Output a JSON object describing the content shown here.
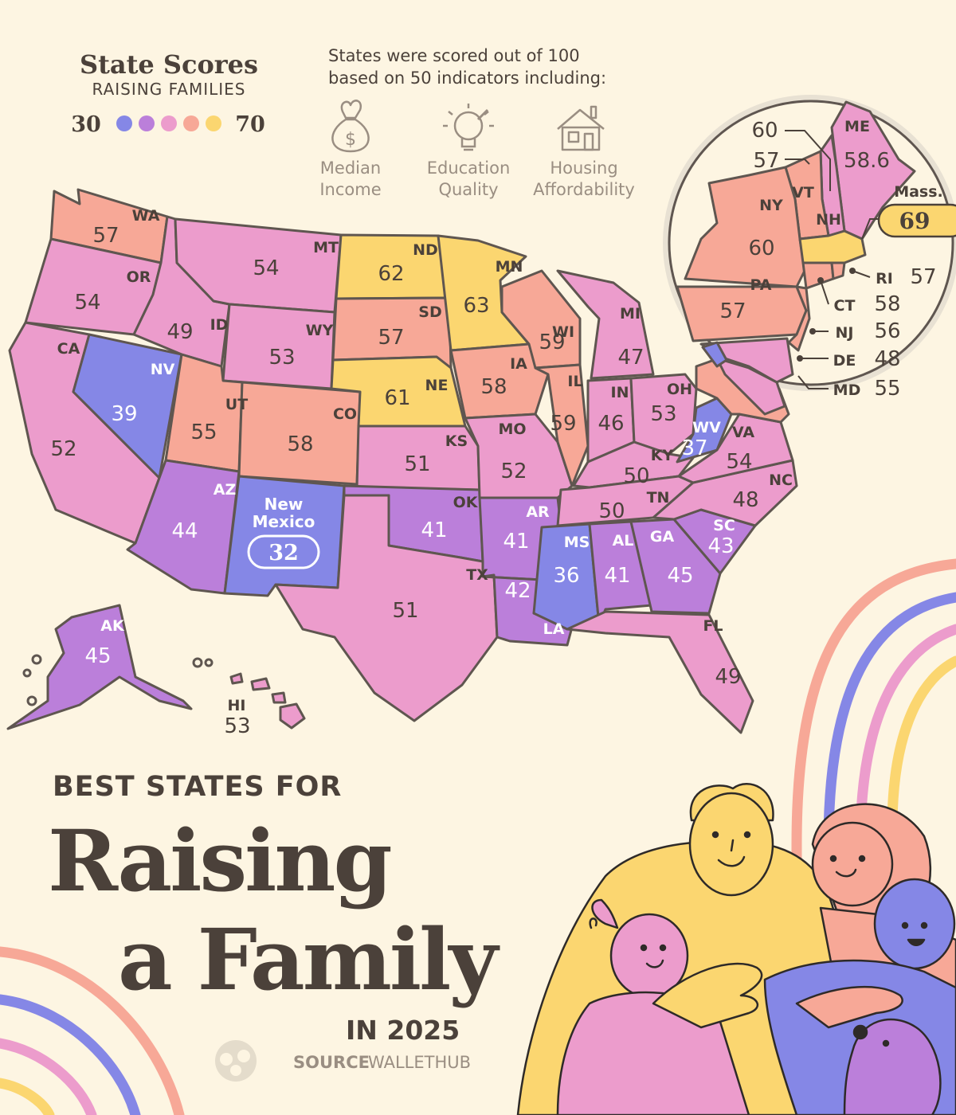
{
  "legend": {
    "title": "State Scores",
    "subtitle": "RAISING FAMILIES",
    "min_label": "30",
    "max_label": "70",
    "scale_colors": [
      "#8587e6",
      "#bb7fda",
      "#ec9ccc",
      "#f7a897",
      "#fbd670"
    ]
  },
  "methodology": {
    "line1": "States were scored out of 100",
    "line2": "based on 50 indicators including:",
    "indicators": [
      {
        "icon": "money-bag-icon",
        "line1": "Median",
        "line2": "Income"
      },
      {
        "icon": "lightbulb-icon",
        "line1": "Education",
        "line2": "Quality"
      },
      {
        "icon": "house-icon",
        "line1": "Housing",
        "line2": "Affordability"
      }
    ]
  },
  "callouts": {
    "new_mexico": {
      "name_line1": "New",
      "name_line2": "Mexico",
      "score": "32"
    },
    "massachusetts": {
      "name": "Mass.",
      "score": "69"
    }
  },
  "inset": {
    "outside_labels": [
      {
        "code": "",
        "score": "60"
      },
      {
        "code": "",
        "score": "57"
      },
      {
        "code": "RI",
        "score": "57"
      },
      {
        "code": "CT",
        "score": "58"
      },
      {
        "code": "NJ",
        "score": "56"
      },
      {
        "code": "DE",
        "score": "48"
      },
      {
        "code": "MD",
        "score": "55"
      }
    ],
    "states": [
      {
        "code": "ME",
        "score": "58.6"
      },
      {
        "code": "NY",
        "score": "60"
      },
      {
        "code": "VT",
        "score": ""
      },
      {
        "code": "NH",
        "score": ""
      },
      {
        "code": "PA",
        "score": "57"
      }
    ]
  },
  "map_states": [
    {
      "code": "WA",
      "score": "57",
      "color": "#f7a897"
    },
    {
      "code": "OR",
      "score": "54",
      "color": "#ec9ccc"
    },
    {
      "code": "CA",
      "score": "52",
      "color": "#ec9ccc"
    },
    {
      "code": "NV",
      "score": "39",
      "color": "#8587e6"
    },
    {
      "code": "ID",
      "score": "49",
      "color": "#ec9ccc"
    },
    {
      "code": "MT",
      "score": "54",
      "color": "#ec9ccc"
    },
    {
      "code": "WY",
      "score": "53",
      "color": "#ec9ccc"
    },
    {
      "code": "UT",
      "score": "55",
      "color": "#f7a897"
    },
    {
      "code": "CO",
      "score": "58",
      "color": "#f7a897"
    },
    {
      "code": "AZ",
      "score": "44",
      "color": "#bb7fda"
    },
    {
      "code": "ND",
      "score": "62",
      "color": "#fbd670"
    },
    {
      "code": "SD",
      "score": "57",
      "color": "#f7a897"
    },
    {
      "code": "NE",
      "score": "61",
      "color": "#fbd670"
    },
    {
      "code": "KS",
      "score": "51",
      "color": "#ec9ccc"
    },
    {
      "code": "OK",
      "score": "41",
      "color": "#bb7fda"
    },
    {
      "code": "TX",
      "score": "51",
      "color": "#ec9ccc"
    },
    {
      "code": "MN",
      "score": "63",
      "color": "#fbd670"
    },
    {
      "code": "IA",
      "score": "58",
      "color": "#f7a897"
    },
    {
      "code": "MO",
      "score": "52",
      "color": "#ec9ccc"
    },
    {
      "code": "AR",
      "score": "41",
      "color": "#bb7fda"
    },
    {
      "code": "LA",
      "score": "42",
      "color": "#bb7fda"
    },
    {
      "code": "WI",
      "score": "59",
      "color": "#f7a897"
    },
    {
      "code": "IL",
      "score": "59",
      "color": "#f7a897"
    },
    {
      "code": "MI",
      "score": "47",
      "color": "#ec9ccc"
    },
    {
      "code": "IN",
      "score": "46",
      "color": "#ec9ccc"
    },
    {
      "code": "OH",
      "score": "53",
      "color": "#ec9ccc"
    },
    {
      "code": "KY",
      "score": "50",
      "color": "#ec9ccc"
    },
    {
      "code": "TN",
      "score": "50",
      "color": "#ec9ccc"
    },
    {
      "code": "MS",
      "score": "36",
      "color": "#8587e6"
    },
    {
      "code": "AL",
      "score": "41",
      "color": "#bb7fda"
    },
    {
      "code": "GA",
      "score": "45",
      "color": "#bb7fda"
    },
    {
      "code": "FL",
      "score": "49",
      "color": "#ec9ccc"
    },
    {
      "code": "SC",
      "score": "43",
      "color": "#bb7fda"
    },
    {
      "code": "NC",
      "score": "48",
      "color": "#ec9ccc"
    },
    {
      "code": "VA",
      "score": "54",
      "color": "#ec9ccc"
    },
    {
      "code": "WV",
      "score": "37",
      "color": "#8587e6"
    },
    {
      "code": "AK",
      "score": "45",
      "color": "#bb7fda"
    },
    {
      "code": "HI",
      "score": "53",
      "color": "#ec9ccc"
    }
  ],
  "title": {
    "kicker": "BEST STATES FOR",
    "line1": "Raising",
    "line2": "a Family",
    "year": "IN 2025"
  },
  "source": {
    "label": "SOURCE",
    "name": "WALLETHUB"
  },
  "colors": {
    "background": "#fdf5e2",
    "text": "#4b413a",
    "outline": "#5f5650",
    "blue": "#8587e6",
    "purple": "#bb7fda",
    "pink": "#ec9ccc",
    "salmon": "#f7a897",
    "yellow": "#fbd670"
  }
}
